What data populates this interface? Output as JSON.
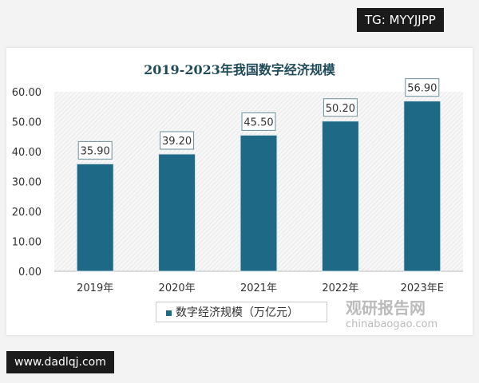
{
  "tags": {
    "top_right": "TG: MYYJJPP",
    "bottom_left": "www.dadlqj.com"
  },
  "watermark": {
    "brand": "观研报告网",
    "url": "chinabaogao.com"
  },
  "chart_data": {
    "type": "bar",
    "title": "2019-2023年我国数字经济规模",
    "categories": [
      "2019年",
      "2020年",
      "2021年",
      "2022年",
      "2023年E"
    ],
    "series": [
      {
        "name": "数字经济规模（万亿元）",
        "values": [
          35.9,
          39.2,
          45.5,
          50.2,
          56.9
        ]
      }
    ],
    "value_labels": [
      "35.90",
      "39.20",
      "45.50",
      "50.20",
      "56.90"
    ],
    "yticks": [
      "0.00",
      "10.00",
      "20.00",
      "30.00",
      "40.00",
      "50.00",
      "60.00"
    ],
    "ylim": [
      0,
      60
    ],
    "legend": "bottom",
    "bar_color": "#1e6a86",
    "grid": false
  }
}
